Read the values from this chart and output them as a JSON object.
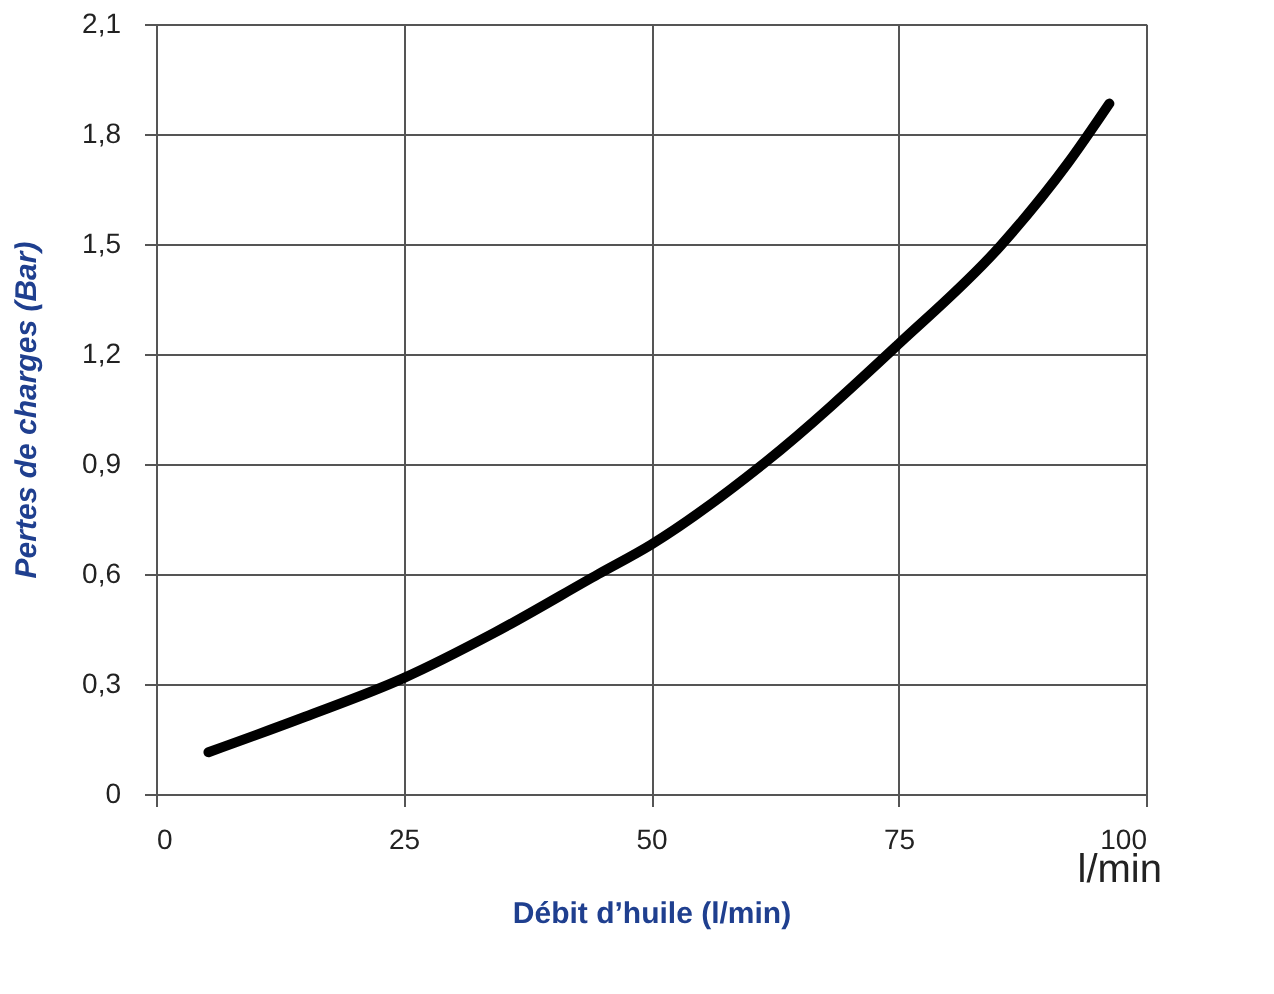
{
  "chart_data": {
    "type": "line",
    "xlabel": "Débit d’huile (l/min)",
    "ylabel": "Pertes de charges (Bar)",
    "annotations": [
      "l/min"
    ],
    "x": [
      5.3,
      15,
      25,
      34.2,
      44.7,
      50,
      61.6,
      75,
      85.3,
      92.1,
      96.3
    ],
    "series": [
      {
        "color": "#000000",
        "values": [
          0.114,
          0.21,
          0.316,
          0.44,
          0.6,
          0.68,
          0.906,
          1.227,
          1.495,
          1.72,
          1.883
        ]
      }
    ],
    "xlim": [
      0,
      100
    ],
    "xticks": [
      0,
      25,
      50,
      75,
      100
    ],
    "ylim": [
      0,
      2.1
    ],
    "yticks": [
      0,
      {
        "value": 0.3,
        "label": "0,3"
      },
      {
        "value": 0.6,
        "label": "0,6"
      },
      {
        "value": 0.9,
        "label": "0,9"
      },
      {
        "value": 1.2,
        "label": "1,2"
      },
      {
        "value": 1.5,
        "label": "1,5"
      },
      {
        "value": 1.8,
        "label": "1,8"
      },
      {
        "value": 2.1,
        "label": "2,1"
      }
    ],
    "grid": true,
    "marker": "none",
    "line_style": "solid"
  }
}
